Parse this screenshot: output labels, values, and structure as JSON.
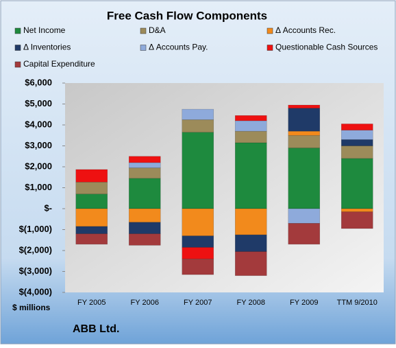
{
  "chart_data": {
    "type": "stacked_bar",
    "title": "Free Cash Flow Components",
    "y_unit_label": "$ millions",
    "footer": "ABB Ltd.",
    "categories": [
      "FY 2005",
      "FY 2006",
      "FY 2007",
      "FY 2008",
      "FY 2009",
      "TTM 9/2010"
    ],
    "series": [
      {
        "name": "Net Income",
        "color": "#1e8a3e",
        "values": [
          700,
          1450,
          3650,
          3150,
          2900,
          2400
        ]
      },
      {
        "name": "D&A",
        "color": "#9c8b5a",
        "values": [
          570,
          500,
          600,
          550,
          600,
          600
        ]
      },
      {
        "name": "Δ Accounts Rec.",
        "color": "#f28a1c",
        "values": [
          -850,
          -650,
          -1300,
          -1250,
          200,
          -150
        ]
      },
      {
        "name": "Δ Inventories",
        "color": "#1f3a68",
        "values": [
          -350,
          -550,
          -550,
          -800,
          1100,
          300
        ]
      },
      {
        "name": "Δ Accounts Pay.",
        "color": "#8eaadb",
        "values": [
          0,
          250,
          500,
          500,
          -700,
          450
        ]
      },
      {
        "name": "Questionable Cash Sources",
        "color": "#ee1111",
        "values": [
          600,
          300,
          -550,
          250,
          150,
          300
        ]
      },
      {
        "name": "Capital Expenditure",
        "color": "#a33a3c",
        "values": [
          -500,
          -550,
          -750,
          -1150,
          -1000,
          -800
        ]
      }
    ],
    "ylim": [
      -4000,
      6000
    ],
    "yticks": [
      {
        "value": -4000,
        "label": "$(4,000)"
      },
      {
        "value": -3000,
        "label": "$(3,000)"
      },
      {
        "value": -2000,
        "label": "$(2,000)"
      },
      {
        "value": -1000,
        "label": "$(1,000)"
      },
      {
        "value": 0,
        "label": "$-"
      },
      {
        "value": 1000,
        "label": "$1,000"
      },
      {
        "value": 2000,
        "label": "$2,000"
      },
      {
        "value": 3000,
        "label": "$3,000"
      },
      {
        "value": 4000,
        "label": "$4,000"
      },
      {
        "value": 5000,
        "label": "$5,000"
      },
      {
        "value": 6000,
        "label": "$6,000"
      }
    ],
    "grid": false
  }
}
